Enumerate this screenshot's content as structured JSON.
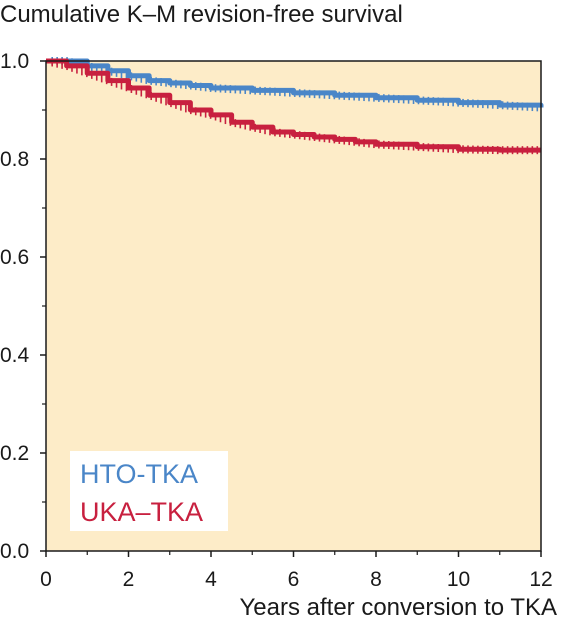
{
  "chart_data": {
    "type": "line",
    "title": "Cumulative K–M revision-free survival",
    "xlabel": "Years after conversion to TKA",
    "ylabel": "",
    "xlim": [
      0,
      12
    ],
    "ylim": [
      0.0,
      1.0
    ],
    "x_ticks": [
      "0",
      "2",
      "4",
      "6",
      "8",
      "10",
      "12"
    ],
    "y_ticks": [
      "0.0",
      "0.2",
      "0.4",
      "0.6",
      "0.8",
      "1.0"
    ],
    "grid": false,
    "legend_position": "bottom-left",
    "colors": {
      "plot_background": "#fdecc8",
      "frame": "#1a1a1a"
    },
    "series": [
      {
        "name": "HTO-TKA",
        "color": "#4a86c8",
        "x": [
          0,
          0.5,
          1.0,
          1.5,
          2.0,
          2.5,
          3.0,
          3.5,
          4.0,
          5.0,
          6.0,
          7.0,
          8.0,
          9.0,
          10.0,
          11.0,
          12.0
        ],
        "y": [
          1.0,
          1.0,
          0.99,
          0.98,
          0.97,
          0.96,
          0.955,
          0.95,
          0.945,
          0.94,
          0.935,
          0.93,
          0.925,
          0.92,
          0.915,
          0.91,
          0.905
        ]
      },
      {
        "name": "UKA–TKA",
        "color": "#c8203f",
        "x": [
          0,
          0.5,
          1.0,
          1.5,
          2.0,
          2.5,
          3.0,
          3.5,
          4.0,
          4.5,
          5.0,
          5.5,
          6.0,
          6.5,
          7.0,
          7.5,
          8.0,
          9.0,
          10.0,
          11.0,
          12.0
        ],
        "y": [
          1.0,
          0.99,
          0.975,
          0.96,
          0.945,
          0.93,
          0.915,
          0.9,
          0.89,
          0.875,
          0.865,
          0.855,
          0.85,
          0.845,
          0.84,
          0.835,
          0.83,
          0.825,
          0.82,
          0.818,
          0.818
        ]
      }
    ]
  }
}
